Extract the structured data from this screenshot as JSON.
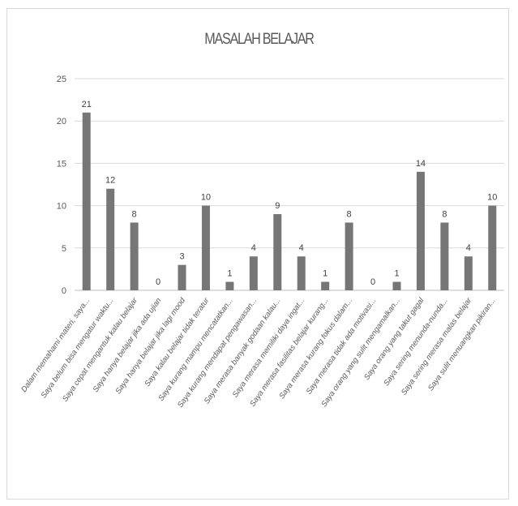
{
  "chart_data": {
    "type": "bar",
    "title": "MASALAH BELAJAR",
    "xlabel": "",
    "ylabel": "",
    "ylim": [
      0,
      25
    ],
    "yticks": [
      0,
      5,
      10,
      15,
      20,
      25
    ],
    "grid": true,
    "legend": "none",
    "bar_color": "#767676",
    "categories": [
      "Dalam memahami materi, saya...",
      "Saya belum bisa mengatur waktu...",
      "Saya cepat mengantuk kalau belajar",
      "Saya hanya belajar jika ada ujian",
      "Saya hanya belajar jika lagi mood",
      "Saya kalau belajar tidak teratur",
      "Saya kurang mampu mencatatkan...",
      "Saya kurang mendapat pengawasan...",
      "Saya merasa banyak godaan kalau...",
      "Saya merasa memiliki daya ingat...",
      "Saya merasa fasilitas belajar kurang...",
      "Saya merasa kurang fokus dalam...",
      "Saya merasa tidak ada motivasi...",
      "Saya orang yang sulit mengamalkan...",
      "Saya orang yang takut gagal",
      "Saya sering menunda-nunda...",
      "Saya sering merasa malas belajar",
      "Saya sulit menuangkan pikiran..."
    ],
    "values": [
      21,
      12,
      8,
      0,
      3,
      10,
      1,
      4,
      9,
      4,
      1,
      8,
      0,
      1,
      14,
      8,
      4,
      10
    ]
  }
}
